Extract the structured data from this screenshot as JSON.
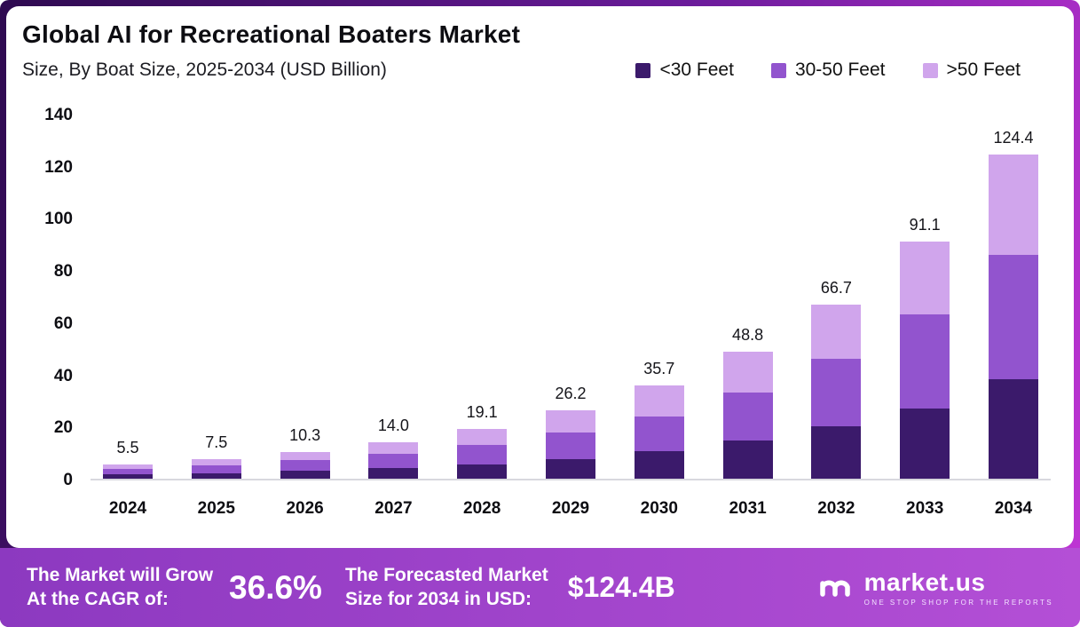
{
  "header": {
    "title": "Global AI for Recreational Boaters Market",
    "subtitle": "Size, By Boat Size, 2025-2034 (USD Billion)"
  },
  "chart_data": {
    "type": "bar",
    "stacked": true,
    "title": "Global AI for Recreational Boaters Market Size, By Boat Size, 2025-2034 (USD Billion)",
    "categories": [
      "2024",
      "2025",
      "2026",
      "2027",
      "2028",
      "2029",
      "2030",
      "2031",
      "2032",
      "2033",
      "2034"
    ],
    "series": [
      {
        "name": "<30 Feet",
        "color": "#3b1a6b",
        "values": [
          1.6,
          2.2,
          3.0,
          4.0,
          5.5,
          7.5,
          10.5,
          14.5,
          20.0,
          27.0,
          38.0
        ]
      },
      {
        "name": "30-50 Feet",
        "color": "#9254ce",
        "values": [
          2.2,
          3.0,
          4.1,
          5.5,
          7.5,
          10.3,
          13.5,
          18.5,
          26.0,
          36.0,
          48.0
        ]
      },
      {
        "name": ">50 Feet",
        "color": "#d0a5ec",
        "values": [
          1.7,
          2.3,
          3.2,
          4.5,
          6.1,
          8.4,
          11.7,
          15.8,
          20.7,
          28.1,
          38.4
        ]
      }
    ],
    "totals": [
      5.5,
      7.5,
      10.3,
      14.0,
      19.1,
      26.2,
      35.7,
      48.8,
      66.7,
      91.1,
      124.4
    ],
    "total_labels": [
      "5.5",
      "7.5",
      "10.3",
      "14.0",
      "19.1",
      "26.2",
      "35.7",
      "48.8",
      "66.7",
      "91.1",
      "124.4"
    ],
    "yticks": [
      0,
      20,
      40,
      60,
      80,
      100,
      120,
      140
    ],
    "ylim": [
      0,
      140
    ],
    "xlabel": "",
    "ylabel": "",
    "grid": false,
    "legend_position": "top-right"
  },
  "footer": {
    "cagr_line1": "The Market will Grow",
    "cagr_line2": "At the CAGR of:",
    "cagr_value": "36.6%",
    "forecast_line1": "The Forecasted Market",
    "forecast_line2": "Size for 2034 in USD:",
    "forecast_value": "$124.4B",
    "logo_text": "market.us",
    "logo_tagline": "ONE STOP SHOP FOR THE REPORTS"
  }
}
